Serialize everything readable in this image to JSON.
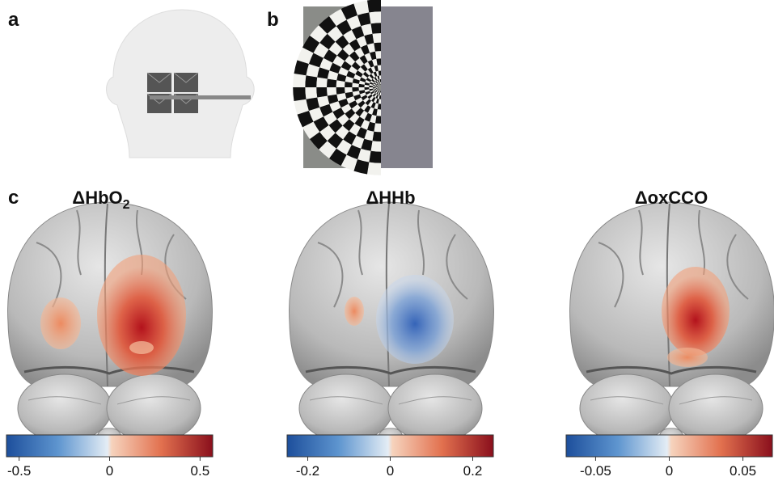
{
  "panels": {
    "a": "a",
    "b": "b",
    "c": "c"
  },
  "maps": [
    {
      "title": "ΔHbO",
      "subscript": "2",
      "colorbar": {
        "lim": [
          -0.57,
          0.57
        ],
        "ticks": [
          -0.5,
          0,
          0.5
        ]
      }
    },
    {
      "title": "ΔHHb",
      "colorbar": {
        "lim": [
          -0.25,
          0.25
        ],
        "ticks": [
          -0.2,
          0,
          0.2
        ]
      }
    },
    {
      "title": "ΔoxCCO",
      "colorbar": {
        "lim": [
          -0.07,
          0.07
        ],
        "ticks": [
          -0.05,
          0,
          0.05
        ]
      }
    }
  ]
}
